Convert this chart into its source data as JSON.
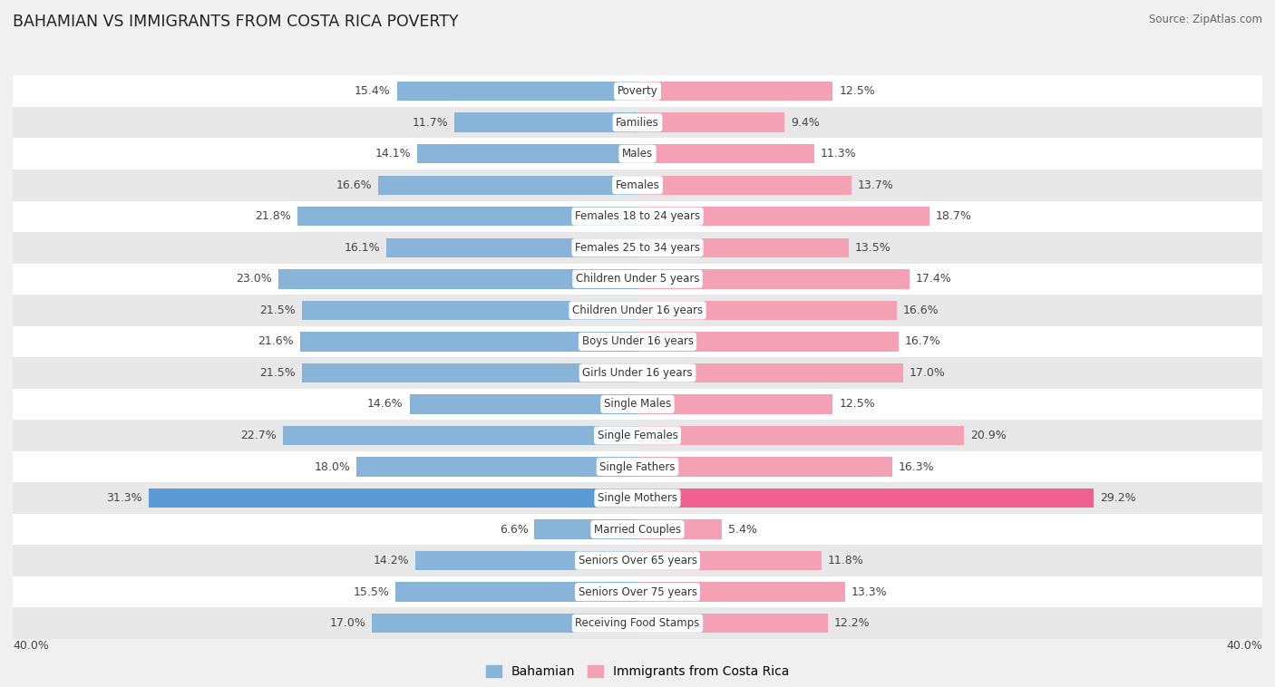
{
  "title": "BAHAMIAN VS IMMIGRANTS FROM COSTA RICA POVERTY",
  "source": "Source: ZipAtlas.com",
  "categories": [
    "Poverty",
    "Families",
    "Males",
    "Females",
    "Females 18 to 24 years",
    "Females 25 to 34 years",
    "Children Under 5 years",
    "Children Under 16 years",
    "Boys Under 16 years",
    "Girls Under 16 years",
    "Single Males",
    "Single Females",
    "Single Fathers",
    "Single Mothers",
    "Married Couples",
    "Seniors Over 65 years",
    "Seniors Over 75 years",
    "Receiving Food Stamps"
  ],
  "bahamian": [
    15.4,
    11.7,
    14.1,
    16.6,
    21.8,
    16.1,
    23.0,
    21.5,
    21.6,
    21.5,
    14.6,
    22.7,
    18.0,
    31.3,
    6.6,
    14.2,
    15.5,
    17.0
  ],
  "costa_rica": [
    12.5,
    9.4,
    11.3,
    13.7,
    18.7,
    13.5,
    17.4,
    16.6,
    16.7,
    17.0,
    12.5,
    20.9,
    16.3,
    29.2,
    5.4,
    11.8,
    13.3,
    12.2
  ],
  "bahamian_color": "#89b4d9",
  "costa_rica_color": "#f4a0b5",
  "single_mothers_bahamian_color": "#5b9bd5",
  "single_mothers_costa_rica_color": "#f06090",
  "bg_color": "#f0f0f0",
  "row_bg_odd": "#ffffff",
  "row_bg_even": "#e8e8e8",
  "max_val": 40.0,
  "bar_height": 0.62,
  "legend_bahamian": "Bahamian",
  "legend_costa_rica": "Immigrants from Costa Rica"
}
